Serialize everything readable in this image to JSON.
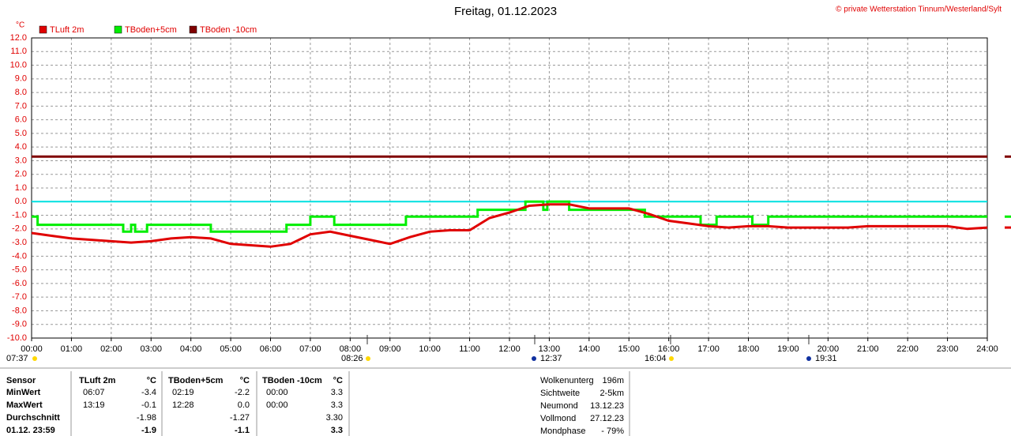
{
  "chart_data": {
    "type": "line",
    "title": "Freitag, 01.12.2023",
    "copyright": "© private Wetterstation Tinnum/Westerland/Sylt",
    "y_unit": "°C",
    "grid": true,
    "reference_line": {
      "value": 0,
      "color": "#00e0e0"
    },
    "xlim": [
      0,
      24
    ],
    "ylim": [
      -10,
      12
    ],
    "yticks": [
      {
        "value": 12,
        "label": "12.0"
      },
      {
        "value": 11,
        "label": "11.0"
      },
      {
        "value": 10,
        "label": "10.0"
      },
      {
        "value": 9,
        "label": "9.0"
      },
      {
        "value": 8,
        "label": "8.0"
      },
      {
        "value": 7,
        "label": "7.0"
      },
      {
        "value": 6,
        "label": "6.0"
      },
      {
        "value": 5,
        "label": "5.0"
      },
      {
        "value": 4,
        "label": "4.0"
      },
      {
        "value": 3,
        "label": "3.0"
      },
      {
        "value": 2,
        "label": "2.0"
      },
      {
        "value": 1,
        "label": "1.0"
      },
      {
        "value": 0,
        "label": "0.0"
      },
      {
        "value": -1,
        "label": "-1.0"
      },
      {
        "value": -2,
        "label": "-2.0"
      },
      {
        "value": -3,
        "label": "-3.0"
      },
      {
        "value": -4,
        "label": "-4.0"
      },
      {
        "value": -5,
        "label": "-5.0"
      },
      {
        "value": -6,
        "label": "-6.0"
      },
      {
        "value": -7,
        "label": "-7.0"
      },
      {
        "value": -8,
        "label": "-8.0"
      },
      {
        "value": -9,
        "label": "-9.0"
      },
      {
        "value": -10,
        "label": "-10.0"
      }
    ],
    "xticks": [
      {
        "value": 0,
        "label": "00:00"
      },
      {
        "value": 1,
        "label": "01:00"
      },
      {
        "value": 2,
        "label": "02:00"
      },
      {
        "value": 3,
        "label": "03:00"
      },
      {
        "value": 4,
        "label": "04:00"
      },
      {
        "value": 5,
        "label": "05:00"
      },
      {
        "value": 6,
        "label": "06:00"
      },
      {
        "value": 7,
        "label": "07:00"
      },
      {
        "value": 8,
        "label": "08:00"
      },
      {
        "value": 9,
        "label": "09:00"
      },
      {
        "value": 10,
        "label": "10:00"
      },
      {
        "value": 11,
        "label": "11:00"
      },
      {
        "value": 12,
        "label": "12:00"
      },
      {
        "value": 13,
        "label": "13:00"
      },
      {
        "value": 14,
        "label": "14:00"
      },
      {
        "value": 15,
        "label": "15:00"
      },
      {
        "value": 16,
        "label": "16:00"
      },
      {
        "value": 17,
        "label": "17:00"
      },
      {
        "value": 18,
        "label": "18:00"
      },
      {
        "value": 19,
        "label": "19:00"
      },
      {
        "value": 20,
        "label": "20:00"
      },
      {
        "value": 21,
        "label": "21:00"
      },
      {
        "value": 22,
        "label": "22:00"
      },
      {
        "value": 23,
        "label": "23:00"
      },
      {
        "value": 24,
        "label": "24:00"
      }
    ],
    "series": [
      {
        "name": "TLuft 2m",
        "color": "#e00000",
        "x": [
          0,
          0.5,
          1,
          1.5,
          2,
          2.5,
          3,
          3.5,
          4,
          4.5,
          5,
          5.5,
          6,
          6.5,
          7,
          7.5,
          8,
          8.5,
          9,
          9.5,
          10,
          10.5,
          11,
          11.5,
          12,
          12.5,
          13,
          13.5,
          14,
          14.5,
          15,
          15.5,
          16,
          16.5,
          17,
          17.5,
          18,
          18.5,
          19,
          19.5,
          20,
          20.5,
          21,
          21.5,
          22,
          22.5,
          23,
          23.5,
          24
        ],
        "values": [
          -2.3,
          -2.5,
          -2.7,
          -2.8,
          -2.9,
          -3.0,
          -2.9,
          -2.7,
          -2.6,
          -2.7,
          -3.1,
          -3.2,
          -3.3,
          -3.1,
          -2.4,
          -2.2,
          -2.5,
          -2.8,
          -3.1,
          -2.6,
          -2.2,
          -2.1,
          -2.1,
          -1.2,
          -0.8,
          -0.3,
          -0.2,
          -0.2,
          -0.5,
          -0.5,
          -0.5,
          -0.9,
          -1.4,
          -1.6,
          -1.8,
          -1.9,
          -1.8,
          -1.8,
          -1.9,
          -1.9,
          -1.9,
          -1.9,
          -1.8,
          -1.8,
          -1.8,
          -1.8,
          -1.8,
          -2.0,
          -1.9
        ]
      },
      {
        "name": "TBoden+5cm",
        "color": "#00ee00",
        "x": [
          0,
          0.15,
          0.15,
          2.3,
          2.3,
          2.5,
          2.5,
          2.6,
          2.6,
          2.9,
          2.9,
          4.5,
          4.5,
          6.4,
          6.4,
          7.0,
          7.0,
          7.6,
          7.6,
          9.4,
          9.4,
          11.2,
          11.2,
          12.4,
          12.4,
          12.85,
          12.85,
          12.95,
          12.95,
          13.5,
          13.5,
          15.4,
          15.4,
          16.8,
          16.8,
          17.2,
          17.2,
          18.1,
          18.1,
          18.5,
          18.5,
          24
        ],
        "values": [
          -1.1,
          -1.1,
          -1.7,
          -1.7,
          -2.2,
          -2.2,
          -1.7,
          -1.7,
          -2.2,
          -2.2,
          -1.7,
          -1.7,
          -2.2,
          -2.2,
          -1.7,
          -1.7,
          -1.1,
          -1.1,
          -1.7,
          -1.7,
          -1.1,
          -1.1,
          -0.6,
          -0.6,
          0.0,
          0.0,
          -0.6,
          -0.6,
          0.0,
          0.0,
          -0.6,
          -0.6,
          -1.1,
          -1.1,
          -1.7,
          -1.7,
          -1.1,
          -1.1,
          -1.7,
          -1.7,
          -1.1,
          -1.1
        ]
      },
      {
        "name": "TBoden -10cm",
        "color": "#800000",
        "x": [
          0,
          24
        ],
        "values": [
          3.3,
          3.3
        ]
      }
    ],
    "annotations": [
      "07:37",
      "08:26",
      "12:37",
      "16:04",
      "19:31"
    ]
  },
  "stats": {
    "headers": [
      "Sensor",
      "TLuft 2m",
      "°C",
      "TBoden+5cm",
      "°C",
      "TBoden -10cm",
      "°C"
    ],
    "rows": [
      [
        "MinWert",
        "06:07",
        "-3.4",
        "02:19",
        "-2.2",
        "00:00",
        "3.3"
      ],
      [
        "MaxWert",
        "13:19",
        "-0.1",
        "12:28",
        "0.0",
        "00:00",
        "3.3"
      ],
      [
        "Durchschnitt",
        null,
        "-1.98",
        null,
        "-1.27",
        null,
        "3.30"
      ],
      [
        "01.12. 23:59",
        null,
        "-1.9",
        null,
        "-1.1",
        null,
        "3.3"
      ]
    ]
  },
  "info": [
    [
      "Wolkenunterg",
      "196m"
    ],
    [
      "Sichtweite",
      "2-5km"
    ],
    [
      "Neumond",
      "13.12.23"
    ],
    [
      "Vollmond",
      "27.12.23"
    ],
    [
      "Mondphase",
      "- 79%"
    ]
  ]
}
